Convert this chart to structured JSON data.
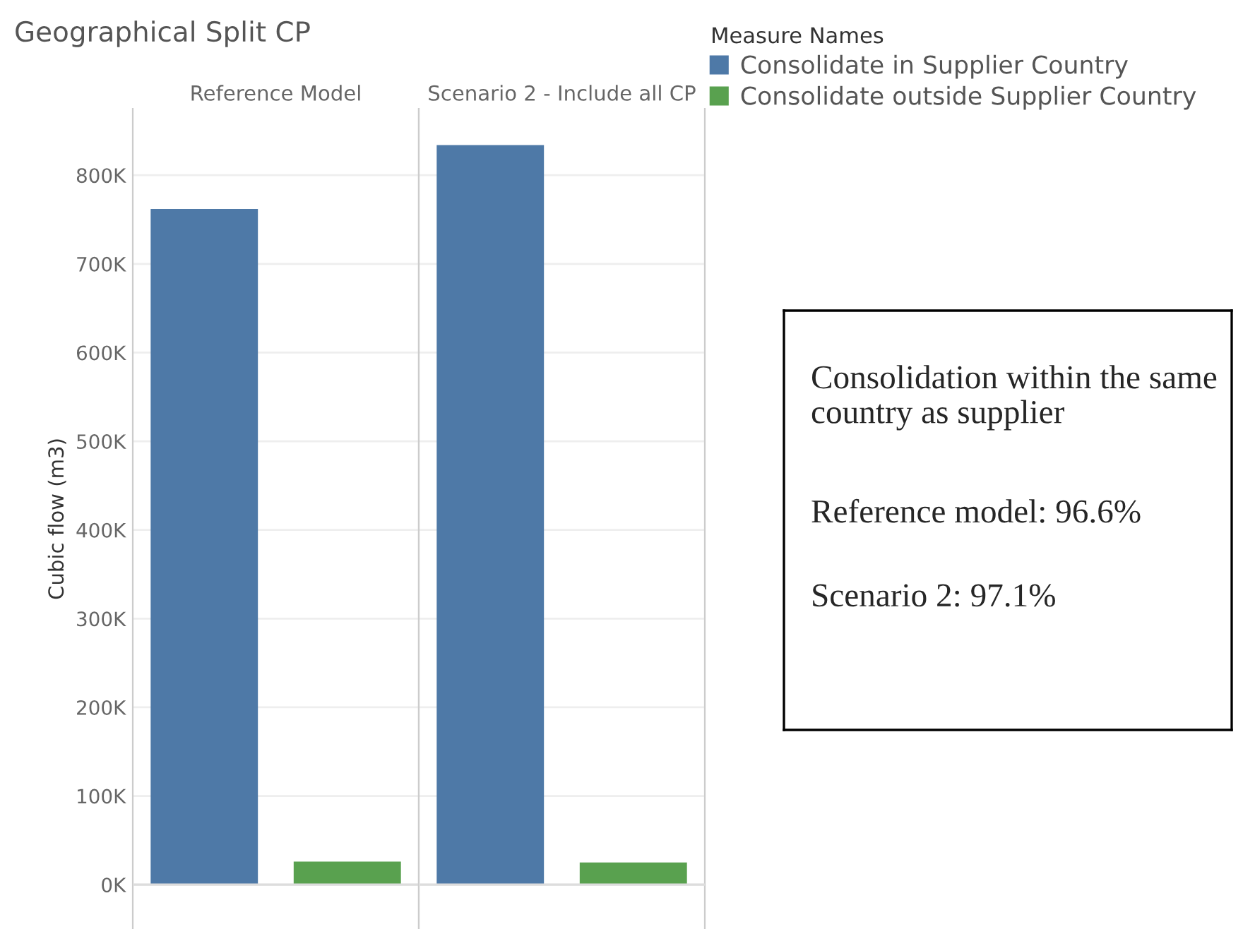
{
  "chart_data": [
    {
      "type": "bar",
      "title": "Geographical Split CP",
      "ylabel": "Cubic flow (m3)",
      "categories": [
        "Reference Model",
        "Scenario 2 - Include all CP"
      ],
      "legend_title": "Measure Names",
      "legend": "top right",
      "series": [
        {
          "name": "Consolidate in Supplier Country",
          "color": "#4e79a7",
          "values": [
            762000,
            834000
          ]
        },
        {
          "name": "Consolidate outside Supplier Country",
          "color": "#59a14f",
          "values": [
            26000,
            25000
          ]
        }
      ],
      "ylim": [
        -50000,
        875000
      ],
      "yticks": [
        {
          "value": 0,
          "label": "0K"
        },
        {
          "value": 100000,
          "label": "100K"
        },
        {
          "value": 200000,
          "label": "200K"
        },
        {
          "value": 300000,
          "label": "300K"
        },
        {
          "value": 400000,
          "label": "400K"
        },
        {
          "value": 500000,
          "label": "500K"
        },
        {
          "value": 600000,
          "label": "600K"
        },
        {
          "value": 700000,
          "label": "700K"
        },
        {
          "value": 800000,
          "label": "800K"
        }
      ],
      "grid": "y"
    },
    {
      "type": "other",
      "annotations": [
        "Consolidation within the same country as supplier",
        "Reference model: 96.6%",
        "Scenario 2: 97.1%"
      ]
    }
  ]
}
